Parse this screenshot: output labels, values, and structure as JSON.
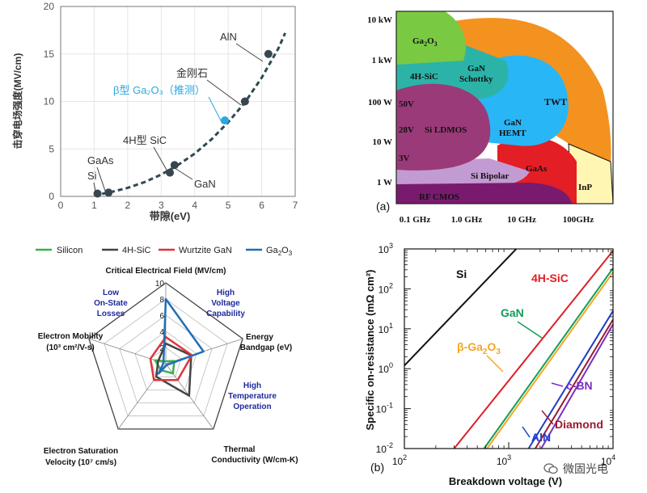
{
  "chart_data": [
    {
      "id": "breakdown-field-vs-bandgap",
      "type": "scatter",
      "xlabel": "带隙(eV)",
      "ylabel": "击穿电场强度(MV/cm)",
      "xlim": [
        0,
        7
      ],
      "ylim": [
        0,
        20
      ],
      "xticks": [
        "0",
        "1",
        "2",
        "3",
        "4",
        "5",
        "6",
        "7"
      ],
      "yticks": [
        "0",
        "5",
        "10",
        "15",
        "20"
      ],
      "points": [
        {
          "label": "Si",
          "x": 1.1,
          "y": 0.3,
          "color": "#37474f"
        },
        {
          "label": "GaAs",
          "x": 1.43,
          "y": 0.4,
          "color": "#37474f"
        },
        {
          "label": "4H型 SiC",
          "x": 3.26,
          "y": 2.5,
          "color": "#37474f"
        },
        {
          "label": "GaN",
          "x": 3.4,
          "y": 3.3,
          "color": "#37474f"
        },
        {
          "label": "β型 Ga₂O₃（推测）",
          "x": 4.9,
          "y": 8.0,
          "color": "#29a8e0"
        },
        {
          "label": "金刚石",
          "x": 5.5,
          "y": 10.0,
          "color": "#37474f"
        },
        {
          "label": "AlN",
          "x": 6.2,
          "y": 15.0,
          "color": "#37474f"
        }
      ],
      "trend": {
        "style": "dashed",
        "color": "#2e4a52",
        "x": [
          1.0,
          1.5,
          2,
          2.5,
          3,
          3.5,
          4,
          4.5,
          5,
          5.5,
          6,
          6.5,
          6.7
        ],
        "y": [
          0.1,
          0.45,
          0.9,
          1.5,
          2.3,
          3.3,
          4.5,
          6.0,
          7.8,
          9.9,
          12.5,
          15.6,
          17.2
        ]
      }
    },
    {
      "id": "power-frequency-map",
      "type": "area",
      "panel_label": "(a)",
      "ylabels": [
        "10 kW",
        "1 kW",
        "100 W",
        "10 W",
        "1 W"
      ],
      "xlabels": [
        "0.1 GHz",
        "1.0 GHz",
        "10 GHz",
        "100GHz"
      ],
      "regions": [
        {
          "name": "TWT",
          "color": "#f4921f"
        },
        {
          "name": "Ga2O3",
          "color": "#7ac943"
        },
        {
          "name": "GaN Schottky",
          "color": "#2bb3a8"
        },
        {
          "name": "GaN HEMT",
          "color": "#29b6f6"
        },
        {
          "name": "50V 28V Si LDMOS 3V",
          "color": "#9b3a78"
        },
        {
          "name": "Si Bipolar",
          "color": "#c39bd3"
        },
        {
          "name": "GaAs",
          "color": "#e31e24"
        },
        {
          "name": "InP",
          "color": "#fff6b3"
        },
        {
          "name": "RF CMOS",
          "color": "#7a1a6e"
        }
      ],
      "texts": {
        "ga2o3_main": "Ga",
        "ga2o3_sub": "2",
        "ga2o3_tail": "O",
        "ga2o3_sub2": "3",
        "sic": "4H-SiC",
        "gan_schottky_1": "GaN",
        "gan_schottky_2": "Schottky",
        "twt": "TWT",
        "v50": "50V",
        "v28": "28V",
        "ldmos": "Si LDMOS",
        "v3": "3V",
        "gan_hemt_1": "GaN",
        "gan_hemt_2": "HEMT",
        "si_bipolar": "Si Bipolar",
        "gaas": "GaAs",
        "inp": "InP",
        "rfcmos": "RF CMOS"
      }
    },
    {
      "id": "material-radar",
      "type": "radar",
      "legend": [
        {
          "name": "Silicon",
          "color": "#3cb04a"
        },
        {
          "name": "4H-SiC",
          "color": "#444444"
        },
        {
          "name": "Wurtzite GaN",
          "color": "#e0333a"
        },
        {
          "name": "Ga₂O₃",
          "color": "#1f6fb8",
          "main": "Ga",
          "sub": "2",
          "tail": "O",
          "sub2": "3"
        }
      ],
      "axes": [
        {
          "l1": "Critical Electrical Field (MV/cm)",
          "l2": ""
        },
        {
          "l1": "Energy",
          "l2": "Bandgap (eV)"
        },
        {
          "l1": "Thermal",
          "l2": "Conductivity (W/cm-K)"
        },
        {
          "l1": "Electron Saturation",
          "l2": "Velocity (10⁷ cm/s)"
        },
        {
          "l1": "Electron Mobility",
          "l2": "(10³ cm²/V-s)"
        }
      ],
      "scale_max": 10,
      "scale_ticks": [
        "2",
        "4",
        "6",
        "8",
        "10"
      ],
      "series": [
        {
          "name": "Silicon",
          "values": [
            0.3,
            1.1,
            1.5,
            1.0,
            1.4
          ]
        },
        {
          "name": "4H-SiC",
          "values": [
            2.5,
            3.3,
            4.9,
            2.0,
            1.0
          ]
        },
        {
          "name": "Wurtzite GaN",
          "values": [
            3.3,
            3.4,
            2.5,
            2.5,
            2.0
          ]
        },
        {
          "name": "Ga₂O₃",
          "values": [
            8.0,
            4.9,
            0.2,
            1.5,
            0.3
          ]
        }
      ],
      "annotations": [
        {
          "l1": "Low",
          "l2": "On-State",
          "l3": "Losses"
        },
        {
          "l1": "High",
          "l2": "Voltage",
          "l3": "Capability"
        },
        {
          "l1": "High",
          "l2": "Temperature",
          "l3": "Operation"
        }
      ]
    },
    {
      "id": "ron-vs-breakdown",
      "type": "line",
      "panel_label": "(b)",
      "xlabel": "Breakdown voltage (V)",
      "ylabel": "Specific on-resistance (mΩ cm²)",
      "xlim": [
        100,
        10000
      ],
      "ylim": [
        0.01,
        1000
      ],
      "xticks": [
        {
          "m": "10",
          "e": "2"
        },
        {
          "m": "10",
          "e": "3"
        },
        {
          "m": "10",
          "e": "4"
        }
      ],
      "yticks": [
        {
          "m": "10",
          "e": "-2"
        },
        {
          "m": "10",
          "e": "-1"
        },
        {
          "m": "10",
          "e": "0"
        },
        {
          "m": "10",
          "e": "1"
        },
        {
          "m": "10",
          "e": "2"
        },
        {
          "m": "10",
          "e": "3"
        }
      ],
      "series": [
        {
          "name": "Si",
          "color": "#111111",
          "x": [
            100,
            1180
          ],
          "y": [
            1.2,
            1000
          ]
        },
        {
          "name": "4H-SiC",
          "color": "#e01f26",
          "x": [
            300,
            10000
          ],
          "y": [
            0.01,
            900
          ]
        },
        {
          "name": "GaN",
          "color": "#0f9d58",
          "x": [
            580,
            10000
          ],
          "y": [
            0.01,
            330
          ]
        },
        {
          "name": "β-Ga₂O₃",
          "color": "#f5a623",
          "x": [
            620,
            10000
          ],
          "y": [
            0.01,
            260
          ]
        },
        {
          "name": "AlN",
          "color": "#1d3ec9",
          "x": [
            1550,
            10000
          ],
          "y": [
            0.01,
            28
          ]
        },
        {
          "name": "Diamond",
          "color": "#9b1b2f",
          "x": [
            1800,
            10000
          ],
          "y": [
            0.01,
            17
          ]
        },
        {
          "name": "c-BN",
          "color": "#7b2fbf",
          "x": [
            2050,
            10000
          ],
          "y": [
            0.01,
            13
          ]
        }
      ],
      "labels": {
        "si": "Si",
        "sic": "4H-SiC",
        "gan": "GaN",
        "ga2o3_pre": "β-Ga",
        "ga2o3_sub": "2",
        "ga2o3_mid": "O",
        "ga2o3_sub2": "3",
        "cbn": "c-BN",
        "diamond": "Diamond",
        "aln": "AlN"
      }
    }
  ],
  "watermark": "微固光电"
}
